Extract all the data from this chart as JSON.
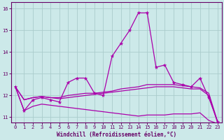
{
  "xlabel": "Windchill (Refroidissement éolien,°C)",
  "background_color": "#cce9e9",
  "line_color": "#aa00aa",
  "grid_color": "#aacccc",
  "spine_color": "#660066",
  "tick_color": "#660066",
  "xlim": [
    -0.5,
    23.5
  ],
  "ylim": [
    10.75,
    16.3
  ],
  "yticks": [
    11,
    12,
    13,
    14,
    15,
    16
  ],
  "xticks": [
    0,
    1,
    2,
    3,
    4,
    5,
    6,
    7,
    8,
    9,
    10,
    11,
    12,
    13,
    14,
    15,
    16,
    17,
    18,
    19,
    20,
    21,
    22,
    23
  ],
  "series": {
    "line1": [
      12.4,
      11.3,
      11.8,
      11.9,
      11.8,
      11.7,
      12.6,
      12.8,
      12.8,
      12.1,
      12.0,
      13.8,
      14.4,
      15.0,
      15.8,
      15.8,
      13.3,
      13.4,
      12.6,
      12.5,
      12.4,
      12.8,
      11.9,
      10.8
    ],
    "line2": [
      12.4,
      11.8,
      11.9,
      11.95,
      11.9,
      11.9,
      12.0,
      12.05,
      12.1,
      12.1,
      12.15,
      12.2,
      12.3,
      12.35,
      12.4,
      12.5,
      12.5,
      12.5,
      12.5,
      12.45,
      12.4,
      12.35,
      12.1,
      10.8
    ],
    "line3": [
      12.4,
      11.8,
      11.9,
      11.95,
      11.9,
      11.85,
      11.9,
      11.95,
      12.0,
      12.05,
      12.1,
      12.15,
      12.2,
      12.25,
      12.3,
      12.35,
      12.4,
      12.4,
      12.4,
      12.35,
      12.3,
      12.3,
      12.0,
      10.75
    ],
    "line4": [
      12.4,
      11.3,
      11.5,
      11.6,
      11.55,
      11.5,
      11.45,
      11.4,
      11.35,
      11.3,
      11.25,
      11.2,
      11.15,
      11.1,
      11.05,
      11.1,
      11.1,
      11.1,
      11.15,
      11.15,
      11.15,
      11.2,
      10.85,
      10.7
    ]
  }
}
